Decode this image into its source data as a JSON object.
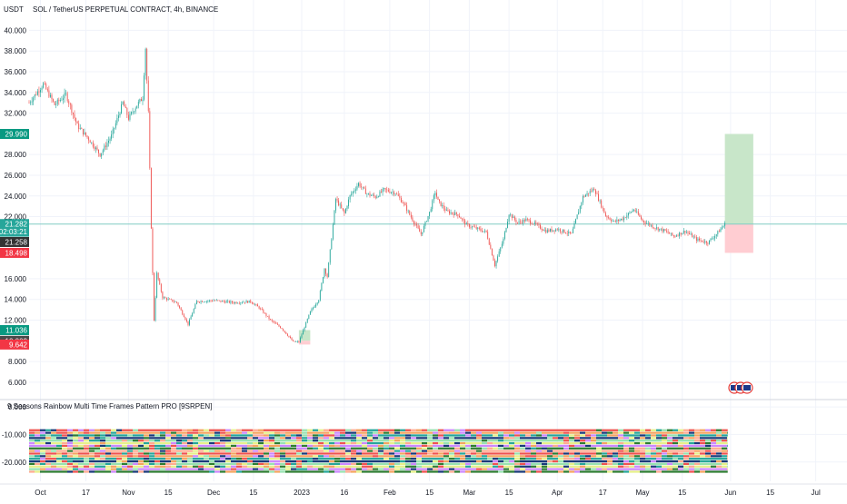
{
  "header": {
    "symbol": "SOL / TetherUS PERPETUAL CONTRACT, 4h, BINANCE",
    "currency": "USDT"
  },
  "indicator": {
    "title": "9 Seasons Rainbow Multi Time Frames Pattern PRO [9SRPEN]"
  },
  "colors": {
    "up": "#26a69a",
    "down": "#ef5350",
    "price_line": "#80cbc4",
    "profit_zone": "#c8e6c9",
    "loss_zone": "#ffcdd2",
    "tag_green": "#089981",
    "tag_red": "#f23645",
    "tag_teal": "#26a69a",
    "tag_dark": "#333333",
    "tag_gray": "#4a4a4a"
  },
  "price_tags": [
    {
      "value": 29.99,
      "label": "29.990",
      "color": "#089981"
    },
    {
      "value": 21.282,
      "label": "21.282",
      "color": "#26a69a"
    },
    {
      "value": 20.55,
      "label": "02:03:21",
      "color": "#26a69a"
    },
    {
      "value": 19.55,
      "label": "21.258",
      "color": "#333333"
    },
    {
      "value": 18.498,
      "label": "18.498",
      "color": "#f23645"
    },
    {
      "value": 11.036,
      "label": "11.036",
      "color": "#089981"
    },
    {
      "value": 10.002,
      "label": "10.002",
      "color": "#4a4a4a"
    },
    {
      "value": 9.642,
      "label": "9.642",
      "color": "#f23645"
    }
  ],
  "chart_data": [
    {
      "type": "line",
      "series_kind": "candlestick",
      "timeframe": "4h",
      "x_ticks": [
        "Oct",
        "17",
        "Nov",
        "15",
        "Dec",
        "15",
        "2023",
        "16",
        "Feb",
        "15",
        "Mar",
        "15",
        "Apr",
        "17",
        "May",
        "15",
        "Jun",
        "15",
        "Jul"
      ],
      "x_tick_dates": [
        "2022-10-01",
        "2022-10-17",
        "2022-11-01",
        "2022-11-15",
        "2022-12-01",
        "2022-12-15",
        "2023-01-01",
        "2023-01-16",
        "2023-02-01",
        "2023-02-15",
        "2023-03-01",
        "2023-03-15",
        "2023-04-01",
        "2023-04-17",
        "2023-05-01",
        "2023-05-15",
        "2023-06-01",
        "2023-06-15",
        "2023-07-01"
      ],
      "y_ticks": [
        "40.000",
        "38.000",
        "36.000",
        "34.000",
        "32.000",
        "28.000",
        "26.000",
        "24.000",
        "22.000",
        "16.000",
        "14.000",
        "12.000",
        "8.000",
        "6.000"
      ],
      "y_tick_values": [
        40,
        38,
        36,
        34,
        32,
        28,
        26,
        24,
        22,
        16,
        14,
        12,
        8,
        6
      ],
      "ylim": [
        4.5,
        41
      ],
      "xlim": [
        "2022-09-27",
        "2023-07-12"
      ],
      "price_path": [
        [
          "2022-09-27",
          33.0
        ],
        [
          "2022-10-02",
          34.8
        ],
        [
          "2022-10-06",
          32.8
        ],
        [
          "2022-10-10",
          33.8
        ],
        [
          "2022-10-14",
          30.8
        ],
        [
          "2022-10-18",
          29.5
        ],
        [
          "2022-10-22",
          28.0
        ],
        [
          "2022-10-26",
          29.8
        ],
        [
          "2022-10-30",
          33.0
        ],
        [
          "2022-11-01",
          31.5
        ],
        [
          "2022-11-04",
          32.8
        ],
        [
          "2022-11-06",
          33.5
        ],
        [
          "2022-11-07",
          38.3
        ],
        [
          "2022-11-08",
          32.0
        ],
        [
          "2022-11-09",
          21.0
        ],
        [
          "2022-11-10",
          12.0
        ],
        [
          "2022-11-11",
          16.5
        ],
        [
          "2022-11-13",
          14.2
        ],
        [
          "2022-11-18",
          13.7
        ],
        [
          "2022-11-22",
          11.6
        ],
        [
          "2022-11-25",
          13.8
        ],
        [
          "2022-12-01",
          13.9
        ],
        [
          "2022-12-08",
          13.7
        ],
        [
          "2022-12-14",
          13.8
        ],
        [
          "2022-12-17",
          13.2
        ],
        [
          "2022-12-21",
          12.0
        ],
        [
          "2022-12-25",
          11.2
        ],
        [
          "2022-12-29",
          9.9
        ],
        [
          "2022-12-31",
          9.9
        ],
        [
          "2023-01-04",
          12.8
        ],
        [
          "2023-01-07",
          14.0
        ],
        [
          "2023-01-09",
          17.0
        ],
        [
          "2023-01-10",
          16.2
        ],
        [
          "2023-01-13",
          23.7
        ],
        [
          "2023-01-16",
          22.3
        ],
        [
          "2023-01-18",
          24.0
        ],
        [
          "2023-01-21",
          25.2
        ],
        [
          "2023-01-24",
          24.2
        ],
        [
          "2023-01-27",
          23.9
        ],
        [
          "2023-01-30",
          24.6
        ],
        [
          "2023-02-03",
          24.3
        ],
        [
          "2023-02-06",
          23.2
        ],
        [
          "2023-02-09",
          21.7
        ],
        [
          "2023-02-12",
          20.3
        ],
        [
          "2023-02-15",
          22.4
        ],
        [
          "2023-02-17",
          24.4
        ],
        [
          "2023-02-18",
          23.5
        ],
        [
          "2023-02-21",
          22.5
        ],
        [
          "2023-02-25",
          22.2
        ],
        [
          "2023-02-28",
          21.2
        ],
        [
          "2023-03-04",
          20.8
        ],
        [
          "2023-03-07",
          20.5
        ],
        [
          "2023-03-10",
          17.3
        ],
        [
          "2023-03-13",
          19.8
        ],
        [
          "2023-03-15",
          22.3
        ],
        [
          "2023-03-18",
          21.4
        ],
        [
          "2023-03-21",
          21.7
        ],
        [
          "2023-03-24",
          21.3
        ],
        [
          "2023-03-28",
          20.6
        ],
        [
          "2023-04-01",
          20.8
        ],
        [
          "2023-04-06",
          20.3
        ],
        [
          "2023-04-10",
          23.9
        ],
        [
          "2023-04-14",
          24.7
        ],
        [
          "2023-04-18",
          22.1
        ],
        [
          "2023-04-21",
          21.5
        ],
        [
          "2023-04-24",
          21.8
        ],
        [
          "2023-04-28",
          22.7
        ],
        [
          "2023-05-01",
          21.6
        ],
        [
          "2023-05-05",
          21.0
        ],
        [
          "2023-05-09",
          20.6
        ],
        [
          "2023-05-12",
          20.1
        ],
        [
          "2023-05-16",
          20.6
        ],
        [
          "2023-05-20",
          19.8
        ],
        [
          "2023-05-24",
          19.5
        ],
        [
          "2023-05-27",
          20.3
        ],
        [
          "2023-05-30",
          21.282
        ]
      ],
      "position_box": {
        "entry": 21.282,
        "target": 29.99,
        "stop": 18.498,
        "from": "2023-05-30",
        "to": "2023-06-09"
      },
      "small_box": {
        "top": 11.036,
        "entry": 10.002,
        "bottom": 9.642,
        "from": "2022-12-31",
        "to": "2023-01-04"
      }
    },
    {
      "type": "heatmap",
      "title": "9 Seasons Rainbow Multi Time Frames Pattern PRO [9SRPEN]",
      "y_ticks": [
        "0.000",
        "-10.000",
        "-20.000"
      ],
      "y_tick_values": [
        0,
        -10,
        -20
      ],
      "ylim": [
        -27,
        2
      ],
      "band_count": 17,
      "band_range": [
        -8,
        -24
      ],
      "palette": [
        "#ef5350",
        "#f4a460",
        "#26a69a",
        "#1a3a7a",
        "#98e2b0",
        "#e6f08a",
        "#cc88ff",
        "#2e7d32",
        "#ffab91"
      ],
      "x_end": "2023-05-31"
    }
  ]
}
